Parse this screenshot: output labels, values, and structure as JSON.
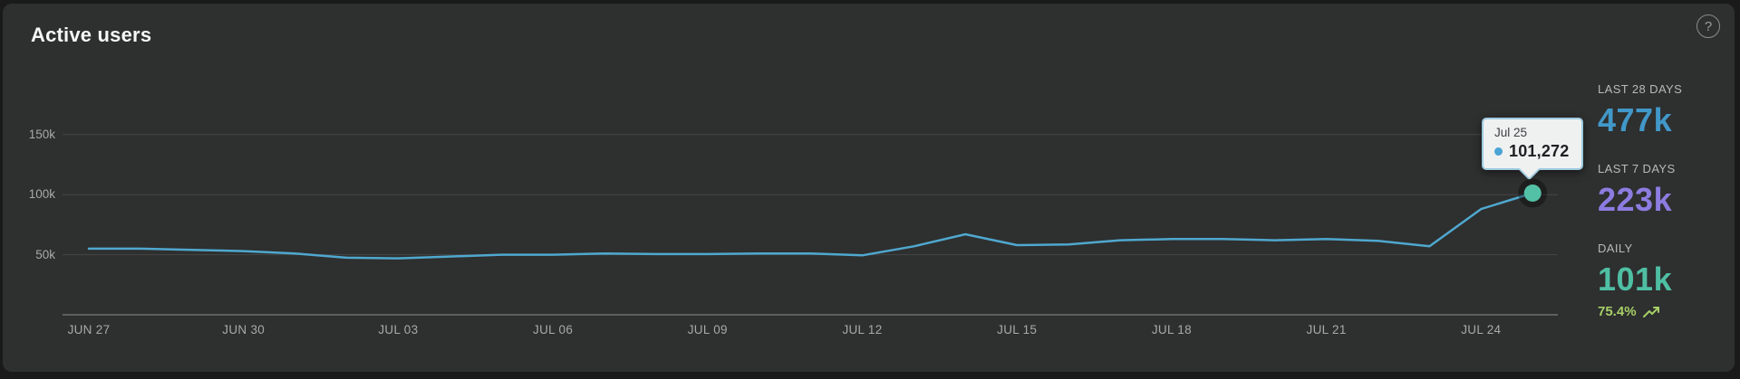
{
  "card": {
    "title": "Active users",
    "help_glyph": "?"
  },
  "colors": {
    "page_bg": "#1a1a1a",
    "card_bg": "#2e2f2f",
    "line": "#4fa8cf",
    "dot": "#53c1a6",
    "grid": "#454747",
    "axis": "#6e7171",
    "tick_label": "#a7aaaa",
    "tooltip_bg": "#eff1f1",
    "tooltip_border": "#9dcade",
    "tooltip_dot": "#4aa4d4",
    "stat_28": "#4198c9",
    "stat_7": "#8d7ce0",
    "stat_daily": "#4fbfa3",
    "trend": "#a6ce67"
  },
  "chart_data": {
    "type": "line",
    "title": "Active users",
    "unit": "users",
    "x": [
      "Jun 27",
      "Jun 28",
      "Jun 29",
      "Jun 30",
      "Jul 01",
      "Jul 02",
      "Jul 03",
      "Jul 04",
      "Jul 05",
      "Jul 06",
      "Jul 07",
      "Jul 08",
      "Jul 09",
      "Jul 10",
      "Jul 11",
      "Jul 12",
      "Jul 13",
      "Jul 14",
      "Jul 15",
      "Jul 16",
      "Jul 17",
      "Jul 18",
      "Jul 19",
      "Jul 20",
      "Jul 21",
      "Jul 22",
      "Jul 23",
      "Jul 24",
      "Jul 25"
    ],
    "values": [
      55000,
      55000,
      54000,
      53000,
      51000,
      47500,
      47000,
      48500,
      50000,
      50000,
      51000,
      50500,
      50500,
      51000,
      51000,
      49500,
      57000,
      67000,
      58000,
      58500,
      62000,
      63000,
      63000,
      62000,
      63000,
      61500,
      57000,
      88000,
      101272
    ],
    "x_tick_labels": [
      "JUN 27",
      "JUN 30",
      "JUL 03",
      "JUL 06",
      "JUL 09",
      "JUL 12",
      "JUL 15",
      "JUL 18",
      "JUL 21",
      "JUL 24"
    ],
    "x_tick_every": 3,
    "y_ticks": [
      {
        "label": "50k",
        "value": 50000
      },
      {
        "label": "100k",
        "value": 100000
      },
      {
        "label": "150k",
        "value": 150000
      }
    ],
    "ylim": [
      0,
      183700
    ],
    "grid": true,
    "legend": false,
    "highlight_point": {
      "index": 28
    },
    "tooltip": {
      "date": "Jul 25",
      "value": "101,272"
    }
  },
  "stats": [
    {
      "label": "LAST 28 DAYS",
      "value": "477k"
    },
    {
      "label": "LAST 7 DAYS",
      "value": "223k"
    },
    {
      "label": "DAILY",
      "value": "101k"
    }
  ],
  "trend": {
    "value": "75.4%"
  }
}
